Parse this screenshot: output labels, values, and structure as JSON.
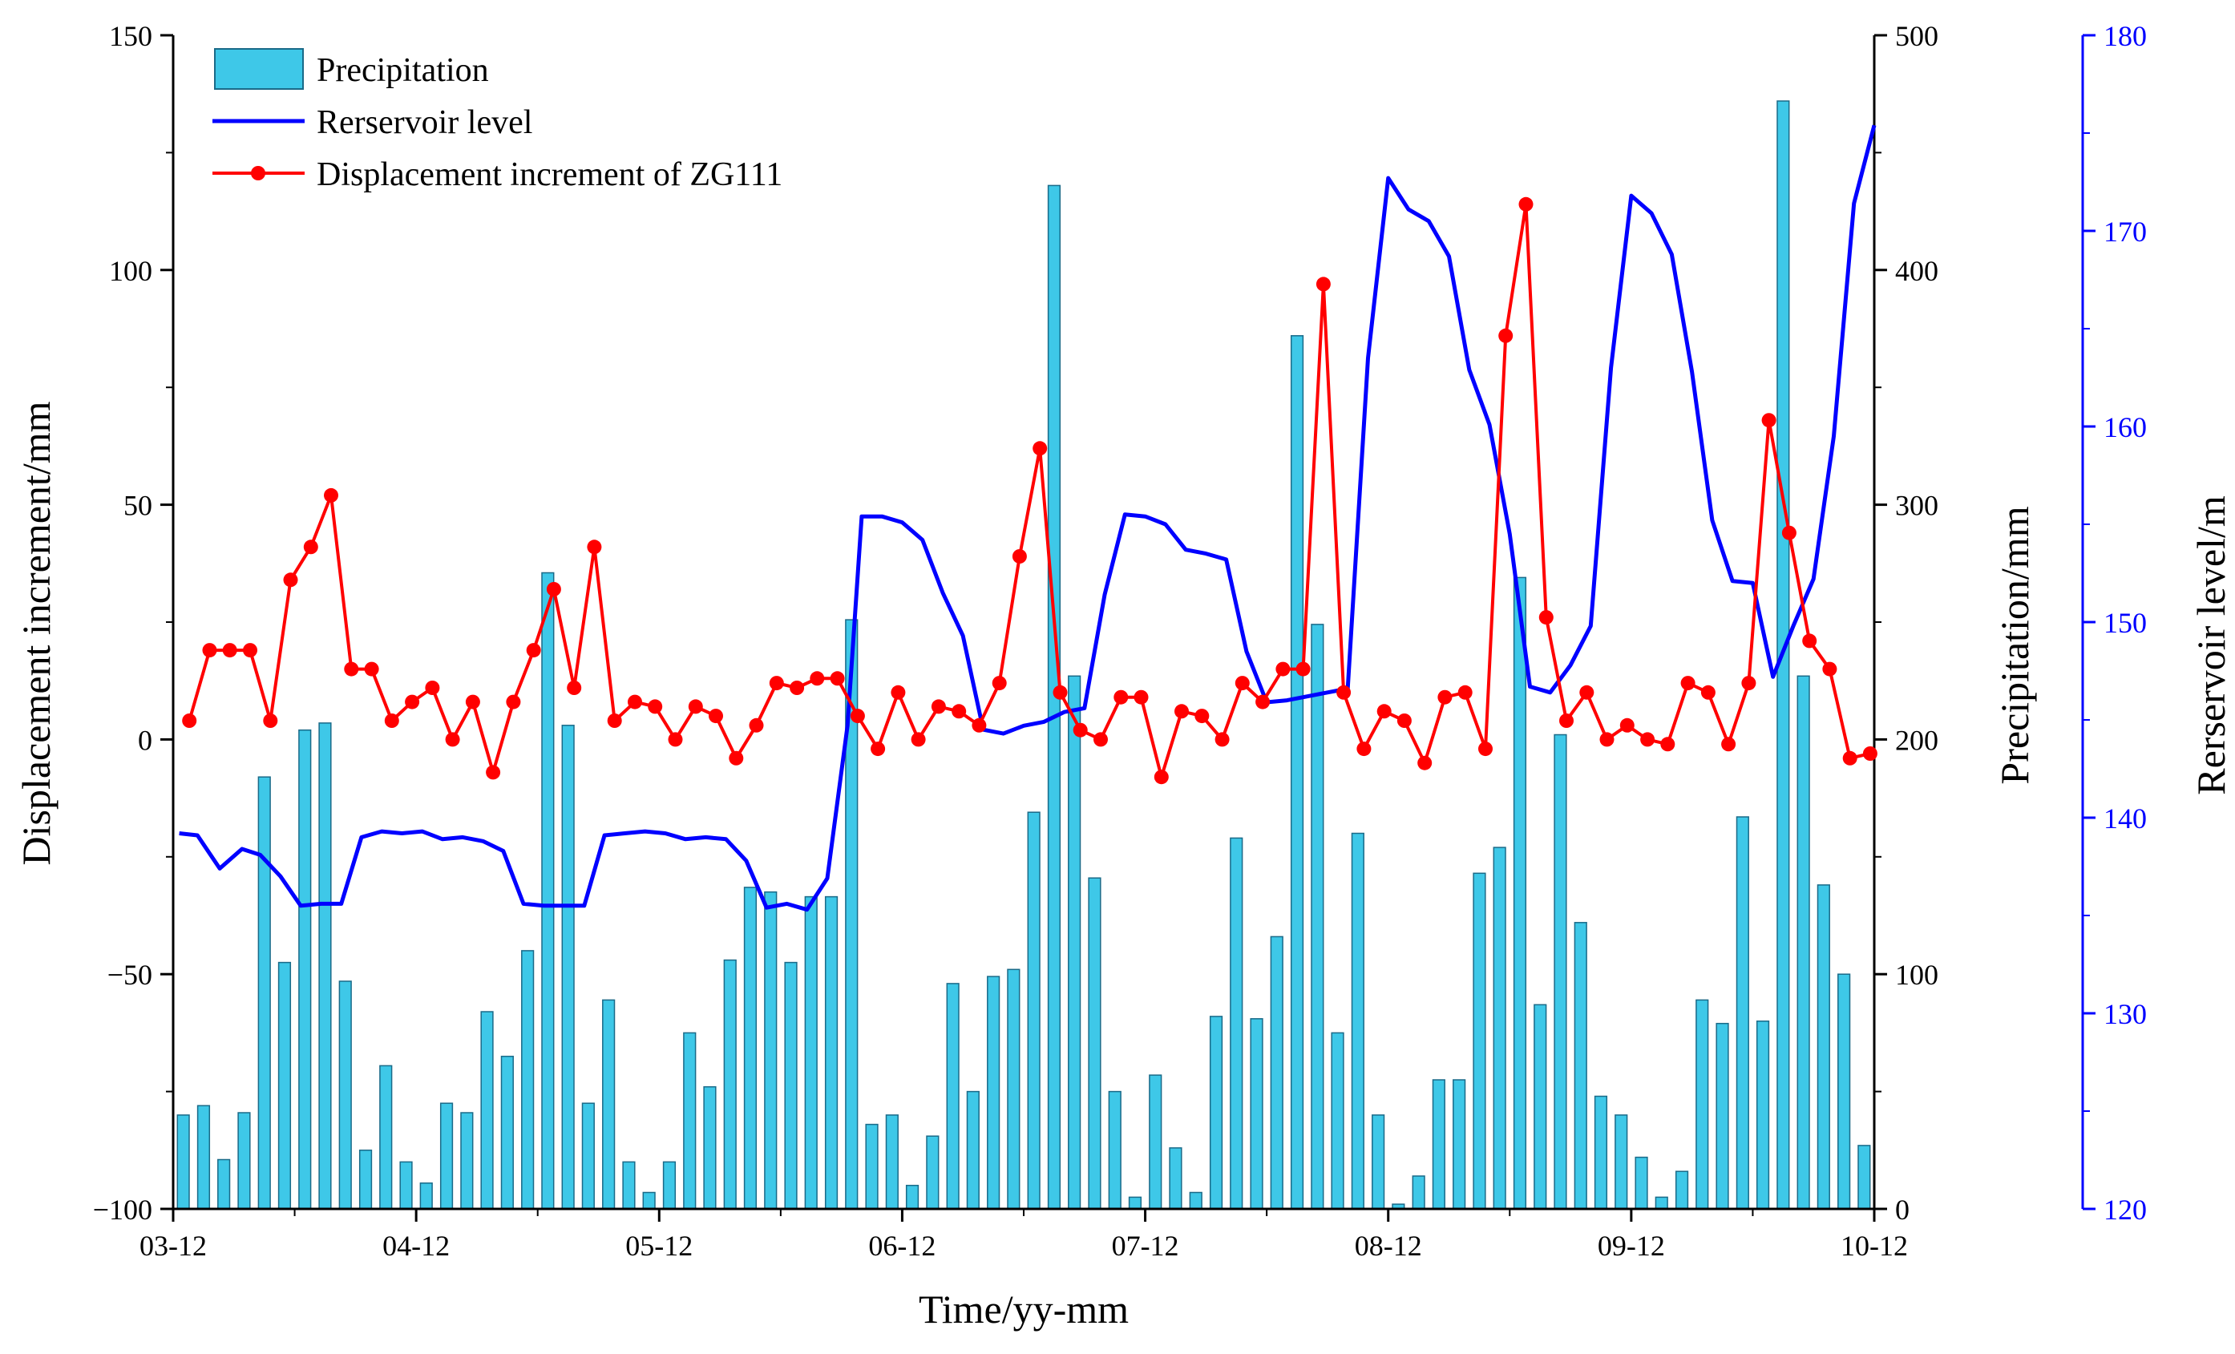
{
  "chart_data": {
    "type": "bar+line",
    "x": {
      "label": "Time/yy-mm",
      "ticks": [
        "03-12",
        "04-12",
        "05-12",
        "06-12",
        "07-12",
        "08-12",
        "09-12",
        "10-12"
      ],
      "range": [
        0,
        84
      ]
    },
    "axes": {
      "left": {
        "label": "Displacement increment/mm",
        "range": [
          -100,
          150
        ],
        "ticks": [
          "−100",
          "−50",
          "0",
          "50",
          "100",
          "150"
        ],
        "tick_values": [
          -100,
          -50,
          0,
          50,
          100,
          150
        ]
      },
      "right1": {
        "label": "Precipitation/mm",
        "range": [
          0,
          500
        ],
        "ticks": [
          "0",
          "100",
          "200",
          "300",
          "400",
          "500"
        ],
        "tick_values": [
          0,
          100,
          200,
          300,
          400,
          500
        ]
      },
      "right2": {
        "label": "Rerservoir level/m",
        "range": [
          120,
          180
        ],
        "ticks": [
          "120",
          "130",
          "140",
          "150",
          "160",
          "170",
          "180"
        ],
        "tick_values": [
          120,
          130,
          140,
          150,
          160,
          170,
          180
        ],
        "color": "#0000ff"
      }
    },
    "legend": {
      "placement": "top-left",
      "entries": [
        "Precipitation",
        "Rerservoir level",
        "Displacement increment of ZG111"
      ]
    },
    "series": [
      {
        "name": "Precipitation",
        "kind": "bar",
        "axis": "right1",
        "color": "#3ec8e8",
        "x": [
          0.5,
          1.5,
          2.5,
          3.5,
          4.5,
          5.5,
          6.5,
          7.5,
          8.5,
          9.5,
          10.5,
          11.5,
          12.5,
          13.5,
          14.5,
          15.5,
          16.5,
          17.5,
          18.5,
          19.5,
          20.5,
          21.5,
          22.5,
          23.5,
          24.5,
          25.5,
          26.5,
          27.5,
          28.5,
          29.5,
          30.5,
          31.5,
          32.5,
          33.5,
          34.5,
          35.5,
          36.5,
          37.5,
          38.5,
          39.5,
          40.5,
          41.5,
          42.5,
          43.5,
          44.5,
          45.5,
          46.5,
          47.5,
          48.5,
          49.5,
          50.5,
          51.5,
          52.5,
          53.5,
          54.5,
          55.5,
          56.5,
          57.5,
          58.5,
          59.5,
          60.5,
          61.5,
          62.5,
          63.5,
          64.5,
          65.5,
          66.5,
          67.5,
          68.5,
          69.5,
          70.5,
          71.5,
          72.5,
          73.5,
          74.5,
          75.5,
          76.5,
          77.5,
          78.5,
          79.5,
          80.5,
          81.5,
          82.5,
          83.5
        ],
        "values": [
          40,
          44,
          21,
          41,
          184,
          105,
          204,
          207,
          97,
          25,
          61,
          20,
          11,
          45,
          41,
          84,
          65,
          110,
          271,
          206,
          45,
          89,
          20,
          7,
          20,
          75,
          52,
          106,
          137,
          135,
          105,
          133,
          133,
          251,
          36,
          40,
          10,
          31,
          96,
          50,
          99,
          102,
          169,
          436,
          227,
          141,
          50,
          5,
          57,
          26,
          7,
          82,
          158,
          81,
          116,
          372,
          249,
          75,
          160,
          40,
          2,
          14,
          55,
          55,
          143,
          154,
          269,
          87,
          202,
          122,
          48,
          40,
          22,
          5,
          16,
          89,
          79,
          167,
          80,
          472,
          227,
          138,
          100,
          27
        ]
      },
      {
        "name": "Rerservoir level",
        "kind": "line",
        "axis": "right2",
        "color": "#0000ff",
        "x": [
          0.3,
          1.2,
          2.3,
          3.4,
          4.3,
          5.3,
          6.3,
          7.3,
          8.3,
          9.3,
          10.3,
          11.3,
          12.3,
          13.3,
          14.3,
          15.3,
          16.3,
          17.3,
          18.3,
          19.3,
          20.3,
          21.3,
          22.3,
          23.3,
          24.3,
          25.3,
          26.3,
          27.3,
          28.3,
          29.3,
          30.3,
          31.3,
          32.3,
          33.3,
          34.0,
          35.0,
          36.0,
          37.0,
          38.0,
          39.0,
          40.0,
          41.0,
          42.0,
          43.0,
          44.0,
          45.0,
          46.0,
          47.0,
          48.0,
          49.0,
          50.0,
          51.0,
          52.0,
          53.0,
          54.0,
          55.0,
          56.0,
          57.0,
          58.0,
          59.0,
          60.0,
          61.0,
          62.0,
          63.0,
          64.0,
          65.0,
          66.0,
          67.0,
          68.0,
          69.0,
          70.0,
          71.0,
          72.0,
          73.0,
          74.0,
          75.0,
          76.0,
          77.0,
          78.0,
          79.0,
          80.0,
          81.0,
          82.0,
          83.0,
          84.0
        ],
        "values": [
          139.2,
          139.1,
          137.4,
          138.4,
          138.1,
          137.0,
          135.5,
          135.6,
          135.6,
          139.0,
          139.3,
          139.2,
          139.3,
          138.9,
          139.0,
          138.8,
          138.3,
          135.6,
          135.5,
          135.5,
          135.5,
          139.1,
          139.2,
          139.3,
          139.2,
          138.9,
          139.0,
          138.9,
          137.8,
          135.4,
          135.6,
          135.3,
          136.9,
          144.7,
          155.4,
          155.4,
          155.1,
          154.2,
          151.5,
          149.3,
          144.5,
          144.3,
          144.7,
          144.9,
          145.4,
          145.6,
          151.4,
          155.5,
          155.4,
          155.0,
          153.7,
          153.5,
          153.2,
          148.5,
          145.9,
          146.0,
          146.2,
          146.4,
          146.6,
          163.5,
          172.7,
          171.1,
          170.5,
          168.7,
          162.9,
          160.1,
          154.5,
          146.7,
          146.4,
          147.8,
          149.8,
          163.0,
          171.8,
          170.9,
          168.8,
          162.8,
          155.2,
          152.1,
          152.0,
          147.2,
          149.8,
          152.2,
          159.5,
          171.4,
          175.4
        ]
      },
      {
        "name": "Displacement increment of ZG111",
        "kind": "line+markers",
        "axis": "left",
        "color": "#ff0000",
        "x": [
          0.8,
          1.8,
          2.8,
          3.8,
          4.8,
          5.8,
          6.8,
          7.8,
          8.8,
          9.8,
          10.8,
          11.8,
          12.8,
          13.8,
          14.8,
          15.8,
          16.8,
          17.8,
          18.8,
          19.8,
          20.8,
          21.8,
          22.8,
          23.8,
          24.8,
          25.8,
          26.8,
          27.8,
          28.8,
          29.8,
          30.8,
          31.8,
          32.8,
          33.8,
          34.8,
          35.8,
          36.8,
          37.8,
          38.8,
          39.8,
          40.8,
          41.8,
          42.8,
          43.8,
          44.8,
          45.8,
          46.8,
          47.8,
          48.8,
          49.8,
          50.8,
          51.8,
          52.8,
          53.8,
          54.8,
          55.8,
          56.8,
          57.8,
          58.8,
          59.8,
          60.8,
          61.8,
          62.8,
          63.8,
          64.8,
          65.8,
          66.8,
          67.8,
          68.8,
          69.8,
          70.8,
          71.8,
          72.8,
          73.8,
          74.8,
          75.8,
          76.8,
          77.8,
          78.8,
          79.8,
          80.8,
          81.8,
          82.8,
          83.8
        ],
        "values": [
          4,
          19,
          19,
          19,
          4,
          34,
          41,
          52,
          15,
          15,
          4,
          8,
          11,
          0,
          8,
          -7,
          8,
          19,
          32,
          11,
          41,
          4,
          8,
          7,
          0,
          7,
          5,
          -4,
          3,
          12,
          11,
          13,
          13,
          5,
          -2,
          10,
          0,
          7,
          6,
          3,
          12,
          39,
          62,
          10,
          2,
          0,
          9,
          9,
          -8,
          6,
          5,
          0,
          12,
          8,
          15,
          15,
          97,
          10,
          -2,
          6,
          4,
          -5,
          9,
          10,
          -2,
          86,
          114,
          26,
          4,
          10,
          0,
          3,
          0,
          -1,
          12,
          10,
          -1,
          12,
          68,
          44,
          21,
          15,
          -4,
          -3
        ]
      }
    ]
  }
}
